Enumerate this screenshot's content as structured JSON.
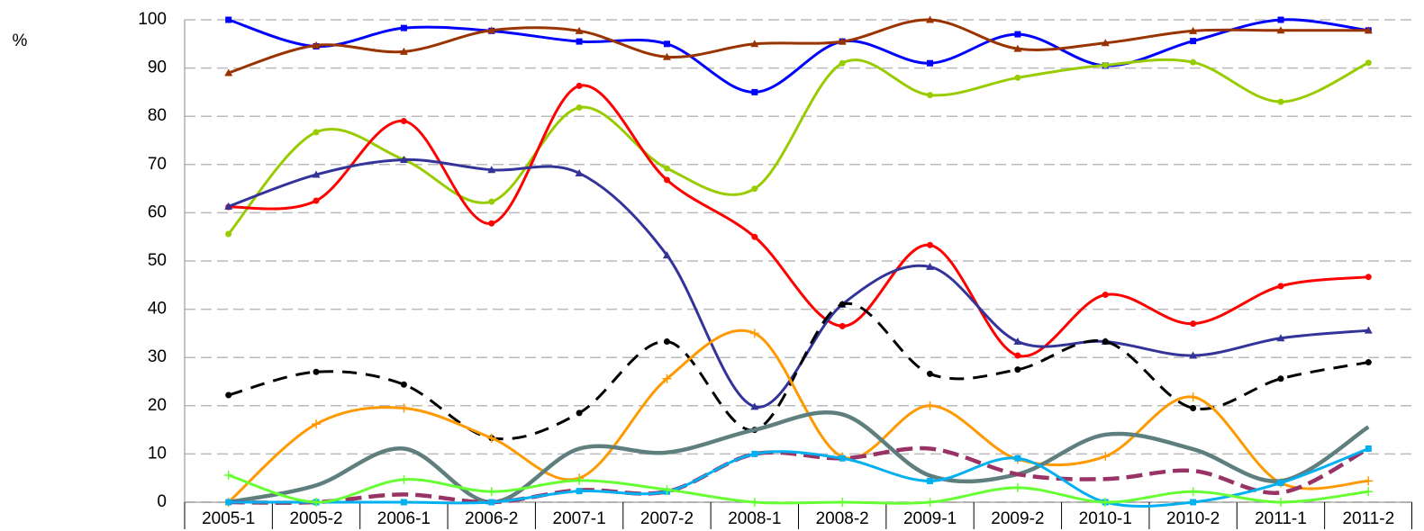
{
  "chart_data": {
    "type": "line",
    "y_label": "%",
    "categories": [
      "2005-1",
      "2005-2",
      "2006-1",
      "2006-2",
      "2007-1",
      "2007-2",
      "2008-1",
      "2008-2",
      "2009-1",
      "2009-2",
      "2010-1",
      "2010-2",
      "2011-1",
      "2011-2"
    ],
    "ylim": [
      0,
      100
    ],
    "yticks": [
      0,
      10,
      20,
      30,
      40,
      50,
      60,
      70,
      80,
      90,
      100
    ],
    "grid": true,
    "series": [
      {
        "color": "#0000ff",
        "marker": "square",
        "values": [
          100,
          94.5,
          98.3,
          97.7,
          95.5,
          95,
          85,
          95.5,
          91,
          97,
          90.5,
          95.6,
          100,
          97.8
        ]
      },
      {
        "color": "#993300",
        "marker": "triangle",
        "values": [
          89,
          94.7,
          93.4,
          97.8,
          97.7,
          92.3,
          95,
          95.5,
          100,
          94,
          95.2,
          97.7,
          97.8,
          97.8
        ]
      },
      {
        "color": "#99cc00",
        "marker": "circle",
        "values": [
          55.6,
          76.7,
          71,
          62.3,
          81.8,
          69.2,
          65,
          91,
          84.4,
          88,
          90.6,
          91.2,
          83,
          91.1
        ]
      },
      {
        "color": "#ff0000",
        "marker": "circle",
        "values": [
          61.2,
          62.5,
          79,
          57.8,
          86.3,
          66.8,
          55,
          36.5,
          53.3,
          30.4,
          43,
          37,
          44.8,
          46.7
        ]
      },
      {
        "color": "#333399",
        "marker": "triangle",
        "values": [
          61.3,
          67.9,
          71,
          68.9,
          68.2,
          51.2,
          19.8,
          41,
          48.8,
          33.3,
          33.3,
          30.4,
          34,
          35.6
        ]
      },
      {
        "color": "#000000",
        "marker": "circle",
        "dashed": true,
        "values": [
          22.2,
          27,
          24.4,
          13.3,
          18.5,
          33.3,
          15,
          41,
          26.6,
          27.5,
          33.3,
          19.5,
          25.6,
          29
        ]
      },
      {
        "color": "#ff9900",
        "marker": "plus",
        "values": [
          0,
          16.2,
          19.5,
          13.3,
          5,
          25.6,
          35,
          9.4,
          20,
          8.9,
          9.5,
          21.8,
          4,
          4.4
        ]
      },
      {
        "color": "#5f7f7f",
        "marker": "none",
        "thick": true,
        "values": [
          0,
          3.5,
          11.1,
          0,
          11.1,
          10.3,
          15,
          18.2,
          5.5,
          5.8,
          14,
          11,
          4.4,
          15.6
        ]
      },
      {
        "color": "#993366",
        "marker": "none",
        "thick": true,
        "dashed": true,
        "values": [
          0,
          0,
          1.6,
          0,
          2.5,
          2.2,
          10,
          9.1,
          11.1,
          5.8,
          4.8,
          6.5,
          2,
          11.1
        ]
      },
      {
        "color": "#00b0f0",
        "marker": "square",
        "values": [
          0,
          0,
          0,
          0,
          2.3,
          2.2,
          10,
          9.1,
          4.4,
          9.1,
          0,
          0,
          4,
          11.1
        ]
      },
      {
        "color": "#66ff33",
        "marker": "plus",
        "values": [
          5.6,
          0,
          4.7,
          2.2,
          4.5,
          2.6,
          0,
          0,
          0,
          3,
          0,
          2.2,
          0,
          2.2
        ]
      }
    ]
  }
}
